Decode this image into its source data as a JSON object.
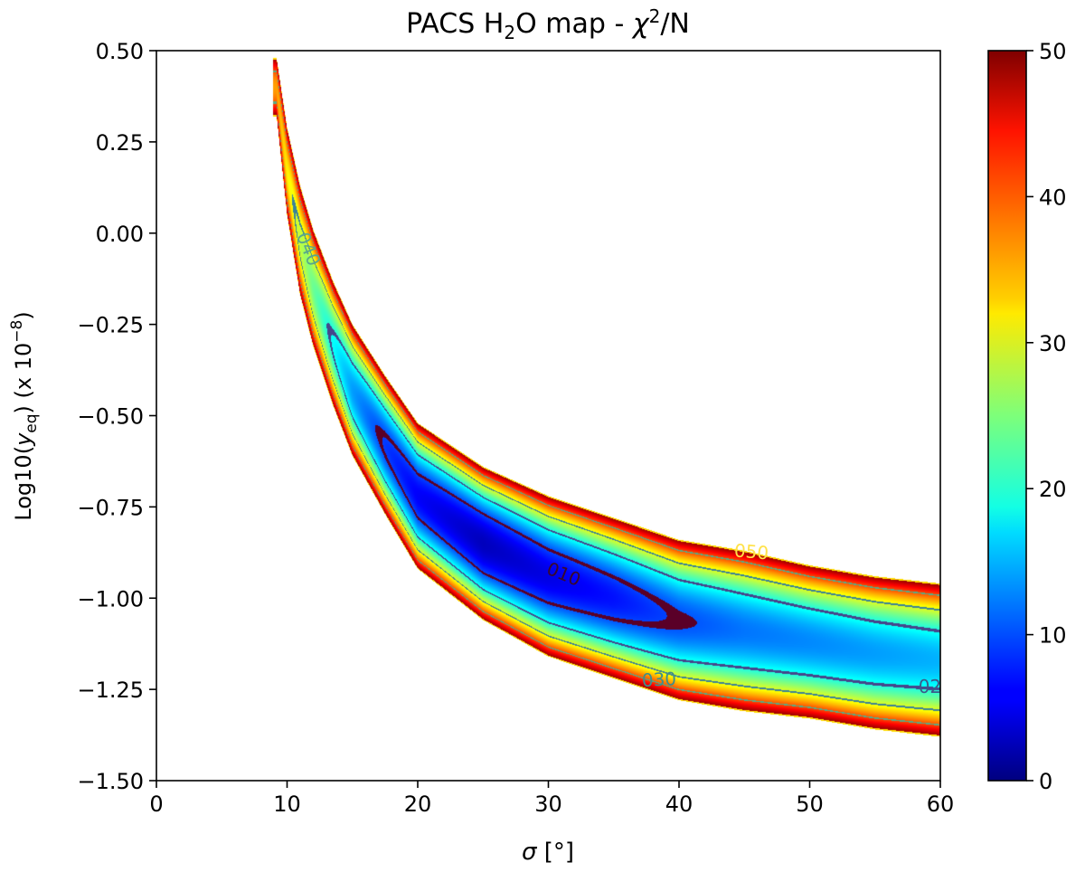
{
  "chart_data": {
    "type": "heatmap",
    "title": {
      "main": "PACS H",
      "sub": "2",
      "rest": "O map - ",
      "chi": "χ",
      "sup": "2",
      "tail": "/N"
    },
    "xlabel": {
      "sym": "σ",
      "unit": " [°]"
    },
    "ylabel": {
      "pre": "Log10(",
      "sym": "y",
      "sub": "eq",
      "mid": ") (x 10",
      "sup": "−8",
      "post": ")"
    },
    "xlim": [
      0,
      60
    ],
    "ylim": [
      -1.5,
      0.5
    ],
    "xticks": [
      "0",
      "10",
      "20",
      "30",
      "40",
      "50",
      "60"
    ],
    "yticks": [
      "0.50",
      "0.25",
      "0.00",
      "−0.25",
      "−0.50",
      "−0.75",
      "−1.00",
      "−1.25",
      "−1.50"
    ],
    "colorbar": {
      "min": 0,
      "max": 50,
      "ticks": [
        "0",
        "10",
        "20",
        "30",
        "40",
        "50"
      ],
      "colormap": "jet"
    },
    "grid": false,
    "contour_levels": [
      10,
      20,
      30,
      40,
      50
    ],
    "contour_labels": [
      {
        "text": "010",
        "x": 31,
        "y": -0.95,
        "level": 10
      },
      {
        "text": "050",
        "x": 45.5,
        "y": -0.89,
        "level": 50
      },
      {
        "text": "030",
        "x": 38.5,
        "y": -1.24,
        "level": 30
      },
      {
        "text": "040",
        "x": 11.2,
        "y": -0.05,
        "level": 40
      },
      {
        "text": "02",
        "x": 59.2,
        "y": -1.26,
        "level": 20
      }
    ],
    "valley": {
      "points": [
        {
          "x": 9.2,
          "center": 0.4,
          "half_width": 0.08,
          "min": 36
        },
        {
          "x": 10,
          "center": 0.17,
          "half_width": 0.12,
          "min": 32
        },
        {
          "x": 11,
          "center": -0.02,
          "half_width": 0.15,
          "min": 28
        },
        {
          "x": 12,
          "center": -0.15,
          "half_width": 0.16,
          "min": 24
        },
        {
          "x": 13.5,
          "center": -0.3,
          "half_width": 0.17,
          "min": 19
        },
        {
          "x": 15,
          "center": -0.43,
          "half_width": 0.18,
          "min": 14
        },
        {
          "x": 17.5,
          "center": -0.58,
          "half_width": 0.19,
          "min": 9
        },
        {
          "x": 20,
          "center": -0.72,
          "half_width": 0.2,
          "min": 6
        },
        {
          "x": 25,
          "center": -0.85,
          "half_width": 0.21,
          "min": 3
        },
        {
          "x": 30,
          "center": -0.94,
          "half_width": 0.22,
          "min": 5
        },
        {
          "x": 35,
          "center": -1.0,
          "half_width": 0.22,
          "min": 7
        },
        {
          "x": 40,
          "center": -1.06,
          "half_width": 0.22,
          "min": 10
        },
        {
          "x": 45,
          "center": -1.09,
          "half_width": 0.22,
          "min": 12
        },
        {
          "x": 50,
          "center": -1.12,
          "half_width": 0.21,
          "min": 13
        },
        {
          "x": 55,
          "center": -1.15,
          "half_width": 0.21,
          "min": 14
        },
        {
          "x": 60,
          "center": -1.17,
          "half_width": 0.21,
          "min": 15
        }
      ]
    }
  }
}
